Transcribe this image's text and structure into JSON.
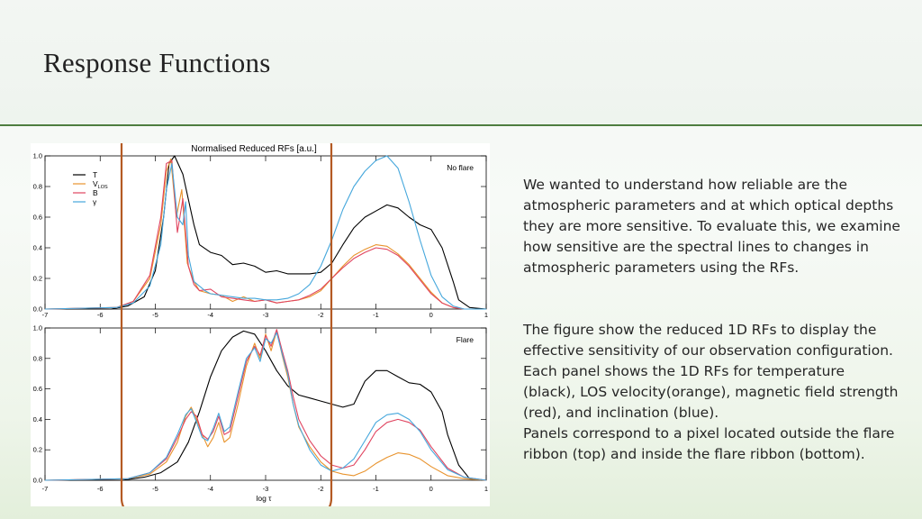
{
  "slide": {
    "title": "Response Functions",
    "paragraph1": "We wanted to understand how reliable are the atmospheric parameters and at which optical depths they are more sensitive. To evaluate this, we examine how sensitive are the spectral lines to changes in atmospheric parameters using the RFs.",
    "paragraph2_lines": [
      "The figure show the reduced 1D RFs to display the effective sensitivity of our observation configuration. Each panel shows the 1D RFs for temperature (black), LOS velocity(orange), magnetic field strength (red), and inclination (blue).",
      "Panels correspond to a pixel located outside the flare ribbon (top) and inside the flare ribbon (bottom)."
    ],
    "highlight_color": "#b45a23",
    "rule_color": "#4e7d3f"
  },
  "chart_data": [
    {
      "type": "line",
      "title": "Normalised Reduced RFs [a.u.]",
      "panel_label": "No flare",
      "xlabel": "",
      "ylabel": "",
      "xlim": [
        -7,
        1
      ],
      "ylim": [
        0,
        1
      ],
      "x_ticks": [
        "-7",
        "-6",
        "-5",
        "-4",
        "-3",
        "-2",
        "-1",
        "0",
        "1"
      ],
      "y_ticks": [
        "0.0",
        "0.2",
        "0.4",
        "0.6",
        "0.8",
        "1.0"
      ],
      "legend_position": "top-left",
      "series": [
        {
          "name": "T",
          "color": "#000000",
          "x": [
            -7,
            -5.8,
            -5.5,
            -5.2,
            -5.0,
            -4.85,
            -4.75,
            -4.65,
            -4.5,
            -4.3,
            -4.2,
            -4.0,
            -3.8,
            -3.6,
            -3.4,
            -3.2,
            -3.0,
            -2.8,
            -2.6,
            -2.4,
            -2.2,
            -2.0,
            -1.8,
            -1.6,
            -1.4,
            -1.2,
            -1.0,
            -0.8,
            -0.6,
            -0.4,
            -0.2,
            0.0,
            0.2,
            0.4,
            0.5,
            0.7,
            1.0
          ],
          "y": [
            0,
            0,
            0.02,
            0.08,
            0.25,
            0.6,
            0.95,
            1.0,
            0.88,
            0.55,
            0.42,
            0.37,
            0.35,
            0.29,
            0.3,
            0.28,
            0.24,
            0.25,
            0.23,
            0.23,
            0.23,
            0.24,
            0.3,
            0.42,
            0.53,
            0.6,
            0.64,
            0.68,
            0.66,
            0.6,
            0.55,
            0.52,
            0.4,
            0.18,
            0.06,
            0.01,
            0
          ]
        },
        {
          "name": "V_LOS",
          "color": "#e8932d",
          "x": [
            -7,
            -5.7,
            -5.4,
            -5.1,
            -4.9,
            -4.8,
            -4.72,
            -4.62,
            -4.52,
            -4.42,
            -4.3,
            -4.2,
            -4.0,
            -3.8,
            -3.6,
            -3.4,
            -3.2,
            -3.0,
            -2.8,
            -2.6,
            -2.4,
            -2.2,
            -2.0,
            -1.8,
            -1.6,
            -1.4,
            -1.2,
            -1.0,
            -0.8,
            -0.6,
            -0.4,
            -0.2,
            0.0,
            0.2,
            0.4,
            0.6,
            1.0
          ],
          "y": [
            0,
            0.01,
            0.05,
            0.2,
            0.55,
            0.9,
            0.98,
            0.6,
            0.78,
            0.3,
            0.18,
            0.12,
            0.1,
            0.09,
            0.05,
            0.08,
            0.05,
            0.06,
            0.04,
            0.05,
            0.06,
            0.08,
            0.12,
            0.2,
            0.28,
            0.35,
            0.39,
            0.42,
            0.41,
            0.36,
            0.29,
            0.2,
            0.11,
            0.04,
            0.01,
            0,
            0
          ]
        },
        {
          "name": "B",
          "color": "#e0445f",
          "x": [
            -7,
            -5.7,
            -5.4,
            -5.1,
            -4.9,
            -4.8,
            -4.7,
            -4.6,
            -4.5,
            -4.4,
            -4.3,
            -4.2,
            -4.0,
            -3.8,
            -3.6,
            -3.4,
            -3.2,
            -3.0,
            -2.8,
            -2.6,
            -2.4,
            -2.2,
            -2.0,
            -1.8,
            -1.6,
            -1.4,
            -1.2,
            -1.0,
            -0.8,
            -0.6,
            -0.4,
            -0.2,
            0.0,
            0.2,
            0.4,
            0.6,
            1.0
          ],
          "y": [
            0,
            0.01,
            0.05,
            0.22,
            0.6,
            0.95,
            0.97,
            0.5,
            0.72,
            0.28,
            0.16,
            0.12,
            0.13,
            0.08,
            0.07,
            0.06,
            0.05,
            0.06,
            0.04,
            0.05,
            0.06,
            0.09,
            0.13,
            0.2,
            0.27,
            0.33,
            0.37,
            0.4,
            0.39,
            0.35,
            0.28,
            0.19,
            0.1,
            0.04,
            0.01,
            0,
            0
          ]
        },
        {
          "name": "γ",
          "color": "#45a7dc",
          "x": [
            -7,
            -5.7,
            -5.4,
            -5.1,
            -4.9,
            -4.8,
            -4.7,
            -4.6,
            -4.5,
            -4.45,
            -4.4,
            -4.3,
            -4.1,
            -4.0,
            -3.8,
            -3.6,
            -3.4,
            -3.2,
            -3.0,
            -2.8,
            -2.6,
            -2.4,
            -2.2,
            -2.0,
            -1.8,
            -1.6,
            -1.4,
            -1.2,
            -1.0,
            -0.8,
            -0.6,
            -0.4,
            -0.2,
            0.0,
            0.2,
            0.4,
            0.6,
            1.0
          ],
          "y": [
            0,
            0.01,
            0.04,
            0.15,
            0.42,
            0.78,
            0.95,
            0.6,
            0.55,
            0.7,
            0.35,
            0.18,
            0.12,
            0.1,
            0.09,
            0.08,
            0.07,
            0.07,
            0.06,
            0.06,
            0.07,
            0.1,
            0.16,
            0.28,
            0.45,
            0.65,
            0.8,
            0.9,
            0.97,
            1.0,
            0.92,
            0.7,
            0.45,
            0.22,
            0.08,
            0.02,
            0,
            0
          ]
        }
      ]
    },
    {
      "type": "line",
      "title": "",
      "panel_label": "Flare",
      "xlabel": "log τ",
      "ylabel": "",
      "xlim": [
        -7,
        1
      ],
      "ylim": [
        0,
        1
      ],
      "x_ticks": [
        "-7",
        "-6",
        "-5",
        "-4",
        "-3",
        "-2",
        "-1",
        "0",
        "1"
      ],
      "y_ticks": [
        "0.0",
        "0.2",
        "0.4",
        "0.6",
        "0.8",
        "1.0"
      ],
      "series": [
        {
          "name": "T",
          "color": "#000000",
          "x": [
            -7,
            -5.6,
            -5.2,
            -4.9,
            -4.6,
            -4.4,
            -4.2,
            -4.0,
            -3.8,
            -3.6,
            -3.4,
            -3.2,
            -3.0,
            -2.8,
            -2.6,
            -2.4,
            -2.2,
            -2.0,
            -1.8,
            -1.6,
            -1.4,
            -1.2,
            -1.0,
            -0.8,
            -0.6,
            -0.4,
            -0.2,
            0.0,
            0.2,
            0.3,
            0.5,
            0.7,
            1.0
          ],
          "y": [
            0,
            0,
            0.02,
            0.05,
            0.12,
            0.25,
            0.45,
            0.68,
            0.85,
            0.94,
            0.98,
            0.96,
            0.85,
            0.72,
            0.62,
            0.56,
            0.54,
            0.52,
            0.5,
            0.48,
            0.5,
            0.65,
            0.72,
            0.72,
            0.68,
            0.64,
            0.63,
            0.58,
            0.45,
            0.3,
            0.1,
            0.01,
            0
          ]
        },
        {
          "name": "V_LOS",
          "color": "#e8932d",
          "x": [
            -7,
            -5.5,
            -5.1,
            -4.8,
            -4.6,
            -4.45,
            -4.35,
            -4.25,
            -4.15,
            -4.05,
            -3.95,
            -3.85,
            -3.75,
            -3.65,
            -3.5,
            -3.35,
            -3.2,
            -3.1,
            -3.0,
            -2.9,
            -2.8,
            -2.7,
            -2.6,
            -2.5,
            -2.4,
            -2.2,
            -2.0,
            -1.8,
            -1.6,
            -1.4,
            -1.2,
            -1.0,
            -0.8,
            -0.6,
            -0.4,
            -0.2,
            0.0,
            0.3,
            0.6,
            1.0
          ],
          "y": [
            0,
            0.01,
            0.04,
            0.12,
            0.25,
            0.42,
            0.48,
            0.4,
            0.3,
            0.22,
            0.28,
            0.38,
            0.25,
            0.28,
            0.5,
            0.75,
            0.9,
            0.8,
            0.96,
            0.85,
            0.98,
            0.82,
            0.68,
            0.5,
            0.35,
            0.22,
            0.12,
            0.06,
            0.04,
            0.03,
            0.06,
            0.11,
            0.15,
            0.18,
            0.17,
            0.14,
            0.09,
            0.03,
            0.01,
            0
          ]
        },
        {
          "name": "B",
          "color": "#e0445f",
          "x": [
            -7,
            -5.5,
            -5.1,
            -4.8,
            -4.6,
            -4.45,
            -4.35,
            -4.25,
            -4.15,
            -4.05,
            -3.95,
            -3.85,
            -3.75,
            -3.65,
            -3.5,
            -3.35,
            -3.2,
            -3.1,
            -3.0,
            -2.9,
            -2.8,
            -2.7,
            -2.6,
            -2.5,
            -2.4,
            -2.2,
            -2.0,
            -1.8,
            -1.6,
            -1.4,
            -1.2,
            -1.0,
            -0.8,
            -0.6,
            -0.4,
            -0.2,
            0.0,
            0.3,
            0.6,
            1.0
          ],
          "y": [
            0,
            0.01,
            0.05,
            0.14,
            0.28,
            0.4,
            0.45,
            0.42,
            0.3,
            0.27,
            0.32,
            0.42,
            0.3,
            0.32,
            0.55,
            0.78,
            0.88,
            0.82,
            0.95,
            0.88,
            0.99,
            0.85,
            0.72,
            0.55,
            0.4,
            0.26,
            0.16,
            0.1,
            0.08,
            0.1,
            0.2,
            0.32,
            0.38,
            0.4,
            0.38,
            0.33,
            0.22,
            0.08,
            0.02,
            0
          ]
        },
        {
          "name": "γ",
          "color": "#45a7dc",
          "x": [
            -7,
            -5.5,
            -5.1,
            -4.8,
            -4.6,
            -4.45,
            -4.35,
            -4.25,
            -4.15,
            -4.05,
            -3.95,
            -3.85,
            -3.75,
            -3.65,
            -3.5,
            -3.35,
            -3.2,
            -3.1,
            -3.0,
            -2.9,
            -2.8,
            -2.7,
            -2.6,
            -2.5,
            -2.4,
            -2.2,
            -2.0,
            -1.8,
            -1.6,
            -1.4,
            -1.2,
            -1.0,
            -0.8,
            -0.6,
            -0.4,
            -0.2,
            0.0,
            0.3,
            0.6,
            1.0
          ],
          "y": [
            0,
            0.01,
            0.05,
            0.15,
            0.3,
            0.43,
            0.47,
            0.38,
            0.28,
            0.26,
            0.34,
            0.44,
            0.32,
            0.35,
            0.58,
            0.8,
            0.87,
            0.78,
            0.93,
            0.9,
            0.97,
            0.83,
            0.7,
            0.5,
            0.36,
            0.2,
            0.1,
            0.06,
            0.08,
            0.14,
            0.26,
            0.38,
            0.43,
            0.44,
            0.4,
            0.32,
            0.2,
            0.07,
            0.02,
            0
          ]
        }
      ]
    }
  ]
}
